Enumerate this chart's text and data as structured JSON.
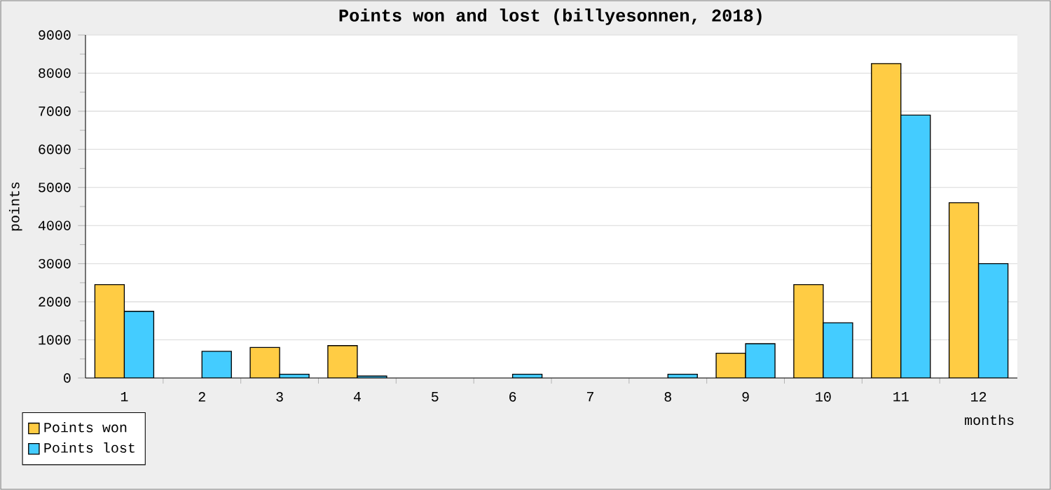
{
  "chart_data": {
    "type": "bar",
    "title": "Points won and lost (billyesonnen, 2018)",
    "xlabel": "months",
    "ylabel": "points",
    "categories": [
      "1",
      "2",
      "3",
      "4",
      "5",
      "6",
      "7",
      "8",
      "9",
      "10",
      "11",
      "12"
    ],
    "series": [
      {
        "name": "Points won",
        "color": "#ffcc44",
        "values": [
          2450,
          0,
          800,
          850,
          0,
          0,
          0,
          0,
          650,
          2450,
          8250,
          4600
        ]
      },
      {
        "name": "Points lost",
        "color": "#44ccff",
        "values": [
          1750,
          700,
          100,
          50,
          0,
          100,
          0,
          100,
          900,
          1450,
          6900,
          3000
        ]
      }
    ],
    "ylim": [
      0,
      9000
    ],
    "yticks": [
      0,
      1000,
      2000,
      3000,
      4000,
      5000,
      6000,
      7000,
      8000,
      9000
    ],
    "grid": "y",
    "legend": "bottom left"
  }
}
